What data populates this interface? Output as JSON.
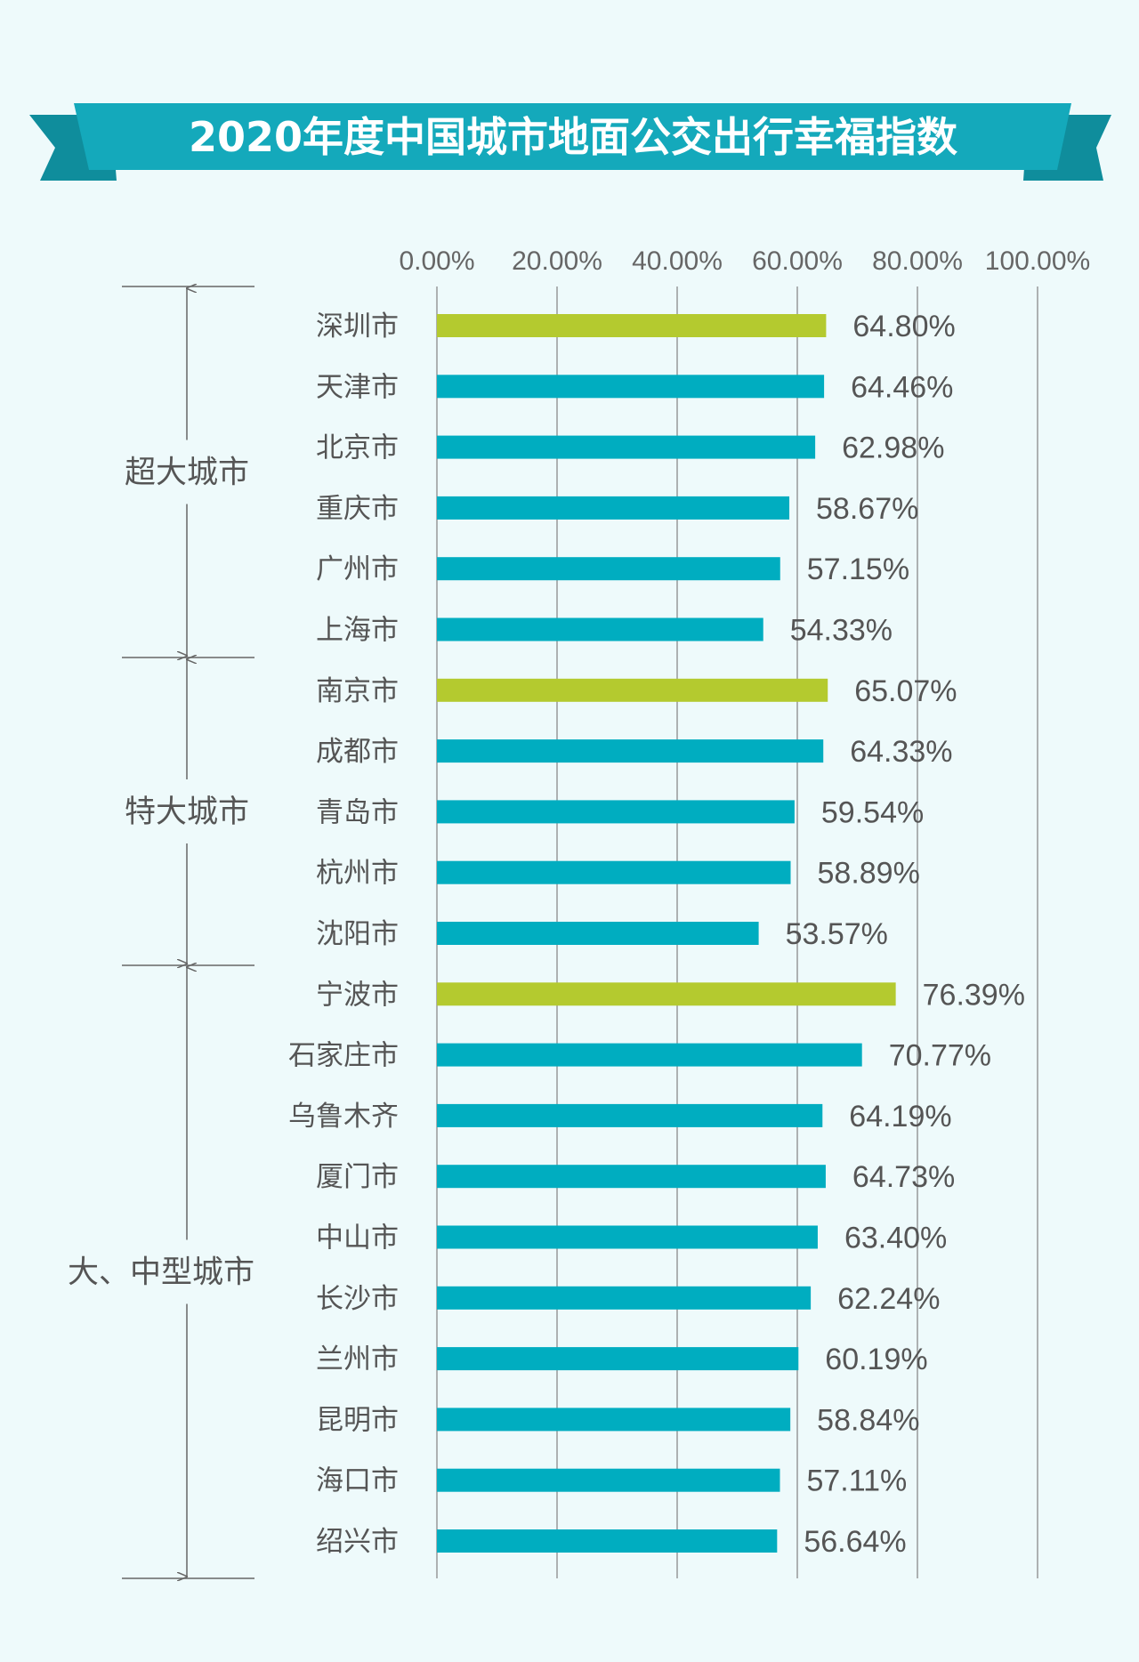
{
  "chart_data": {
    "type": "bar",
    "orientation": "horizontal",
    "title": "2020年度中国城市地面公交出行幸福指数",
    "xlim": [
      0,
      100
    ],
    "x_ticks": [
      "0.00%",
      "20.00%",
      "40.00%",
      "60.00%",
      "80.00%",
      "100.00%"
    ],
    "grid": true,
    "colors": {
      "highlight": "#b4ca2f",
      "normal": "#00adc0",
      "ribbon": "#14a9bb",
      "ribbon_tail": "#0f8d9c"
    },
    "groups": [
      {
        "name": "超大城市",
        "cities": [
          {
            "city": "深圳市",
            "value": 64.8,
            "label": "64.80%",
            "highlight": true
          },
          {
            "city": "天津市",
            "value": 64.46,
            "label": "64.46%"
          },
          {
            "city": "北京市",
            "value": 62.98,
            "label": "62.98%"
          },
          {
            "city": "重庆市",
            "value": 58.67,
            "label": "58.67%"
          },
          {
            "city": "广州市",
            "value": 57.15,
            "label": "57.15%"
          },
          {
            "city": "上海市",
            "value": 54.33,
            "label": "54.33%"
          }
        ]
      },
      {
        "name": "特大城市",
        "cities": [
          {
            "city": "南京市",
            "value": 65.07,
            "label": "65.07%",
            "highlight": true
          },
          {
            "city": "成都市",
            "value": 64.33,
            "label": "64.33%"
          },
          {
            "city": "青岛市",
            "value": 59.54,
            "label": "59.54%"
          },
          {
            "city": "杭州市",
            "value": 58.89,
            "label": "58.89%"
          },
          {
            "city": "沈阳市",
            "value": 53.57,
            "label": "53.57%"
          }
        ]
      },
      {
        "name": "大、中型城市",
        "cities": [
          {
            "city": "宁波市",
            "value": 76.39,
            "label": "76.39%",
            "highlight": true
          },
          {
            "city": "石家庄市",
            "value": 70.77,
            "label": "70.77%"
          },
          {
            "city": "乌鲁木齐",
            "value": 64.19,
            "label": "64.19%"
          },
          {
            "city": "厦门市",
            "value": 64.73,
            "label": "64.73%"
          },
          {
            "city": "中山市",
            "value": 63.4,
            "label": "63.40%"
          },
          {
            "city": "长沙市",
            "value": 62.24,
            "label": "62.24%"
          },
          {
            "city": "兰州市",
            "value": 60.19,
            "label": "60.19%"
          },
          {
            "city": "昆明市",
            "value": 58.84,
            "label": "58.84%"
          },
          {
            "city": "海口市",
            "value": 57.11,
            "label": "57.11%"
          },
          {
            "city": "绍兴市",
            "value": 56.64,
            "label": "56.64%"
          }
        ]
      }
    ]
  }
}
